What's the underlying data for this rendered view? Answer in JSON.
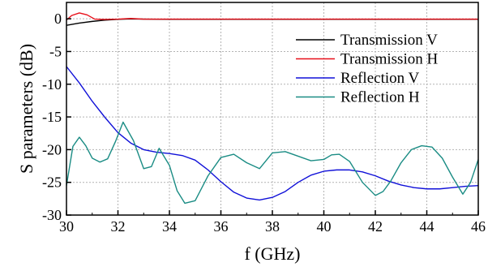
{
  "chart_data": {
    "type": "line",
    "title": "",
    "xlabel": "f (GHz)",
    "ylabel": "S parameters (dB)",
    "xlim": [
      30,
      46
    ],
    "ylim": [
      -30,
      2.5
    ],
    "xticks": [
      30,
      32,
      34,
      36,
      38,
      40,
      42,
      44,
      46
    ],
    "yticks": [
      0,
      -5,
      -10,
      -15,
      -20,
      -25,
      -30
    ],
    "grid": true,
    "legend": "upper-right",
    "series": [
      {
        "name": "Transmission V",
        "color": "#000000",
        "x": [
          30,
          30.5,
          31,
          31.5,
          32,
          32.5,
          33,
          34,
          36,
          38,
          40,
          42,
          44,
          46
        ],
        "y": [
          -1.0,
          -0.65,
          -0.4,
          -0.2,
          -0.08,
          -0.02,
          -0.05,
          -0.08,
          -0.08,
          -0.08,
          -0.08,
          -0.08,
          -0.08,
          -0.08
        ]
      },
      {
        "name": "Transmission H",
        "color": "#e8101a",
        "x": [
          30,
          30.2,
          30.5,
          30.8,
          31.1,
          31.5,
          32,
          32.5,
          33,
          34,
          36,
          38,
          40,
          42,
          44,
          46
        ],
        "y": [
          -0.2,
          0.5,
          0.9,
          0.6,
          -0.05,
          -0.1,
          -0.05,
          0.05,
          -0.05,
          -0.05,
          -0.05,
          -0.05,
          -0.05,
          -0.05,
          -0.05,
          -0.05
        ]
      },
      {
        "name": "Reflection V",
        "color": "#1010d8",
        "x": [
          30,
          30.5,
          31,
          31.5,
          32,
          32.5,
          33,
          33.5,
          34,
          34.5,
          35,
          35.5,
          36,
          36.5,
          37,
          37.5,
          38,
          38.5,
          39,
          39.5,
          40,
          40.5,
          41,
          41.5,
          42,
          42.5,
          43,
          43.5,
          44,
          44.5,
          45,
          45.5,
          46
        ],
        "y": [
          -7.3,
          -9.8,
          -12.6,
          -15.1,
          -17.4,
          -19.0,
          -20.0,
          -20.4,
          -20.6,
          -20.9,
          -21.6,
          -23.1,
          -24.9,
          -26.5,
          -27.4,
          -27.7,
          -27.3,
          -26.4,
          -25.0,
          -23.9,
          -23.3,
          -23.1,
          -23.1,
          -23.4,
          -24.0,
          -24.8,
          -25.4,
          -25.8,
          -26.0,
          -26.0,
          -25.8,
          -25.6,
          -25.5
        ]
      },
      {
        "name": "Reflection H",
        "color": "#1a8c84",
        "x": [
          30,
          30.25,
          30.5,
          30.75,
          31,
          31.3,
          31.6,
          31.9,
          32.2,
          32.6,
          33,
          33.3,
          33.6,
          34,
          34.3,
          34.6,
          35,
          35.5,
          36,
          36.5,
          37,
          37.5,
          38,
          38.5,
          39,
          39.5,
          40,
          40.3,
          40.6,
          41,
          41.5,
          42,
          42.3,
          42.6,
          43,
          43.4,
          43.8,
          44.2,
          44.6,
          45,
          45.4,
          45.7,
          46
        ],
        "y": [
          -25.5,
          -19.5,
          -18.1,
          -19.4,
          -21.3,
          -21.9,
          -21.4,
          -18.8,
          -15.8,
          -18.6,
          -22.9,
          -22.6,
          -19.8,
          -22.4,
          -26.3,
          -28.2,
          -27.8,
          -24.0,
          -21.2,
          -20.7,
          -22.0,
          -22.9,
          -20.5,
          -20.3,
          -21.0,
          -21.7,
          -21.5,
          -20.8,
          -20.7,
          -21.8,
          -25.0,
          -27.0,
          -26.4,
          -24.8,
          -22.0,
          -20.0,
          -19.4,
          -19.6,
          -21.3,
          -24.2,
          -26.8,
          -25.0,
          -21.5
        ]
      }
    ]
  }
}
